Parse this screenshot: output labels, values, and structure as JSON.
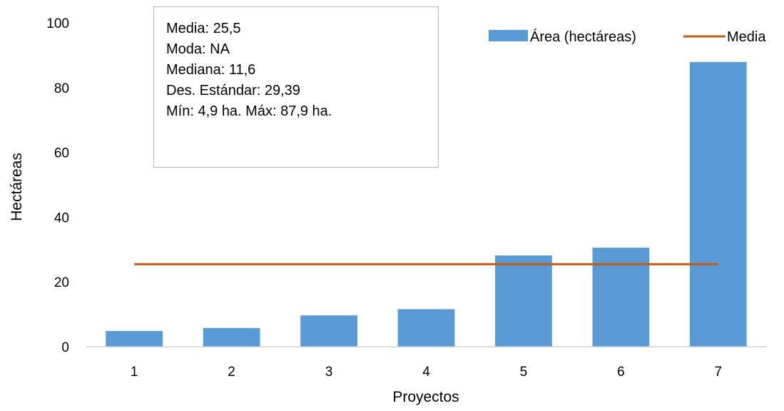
{
  "chart_data": {
    "type": "bar",
    "categories": [
      "1",
      "2",
      "3",
      "4",
      "5",
      "6",
      "7"
    ],
    "series": [
      {
        "name": "Área (hectáreas)",
        "type": "bar",
        "color": "#5b9bd5",
        "values": [
          4.9,
          5.8,
          9.7,
          11.6,
          28.2,
          30.6,
          87.9
        ]
      },
      {
        "name": "Media",
        "type": "line",
        "color": "#c55a11",
        "values": [
          25.5,
          25.5,
          25.5,
          25.5,
          25.5,
          25.5,
          25.5
        ]
      }
    ],
    "xlabel": "Proyectos",
    "ylabel": "Hectáreas",
    "ylim": [
      0,
      100
    ],
    "yticks": [
      "0",
      "20",
      "40",
      "60",
      "80",
      "100"
    ],
    "grid": false,
    "legend_position": "top-right",
    "annotation": {
      "lines": [
        "Media: 25,5",
        "Moda: NA",
        "Mediana: 11,6",
        "Des. Estándar: 29,39",
        "Mín: 4,9 ha. Máx: 87,9 ha."
      ]
    }
  }
}
